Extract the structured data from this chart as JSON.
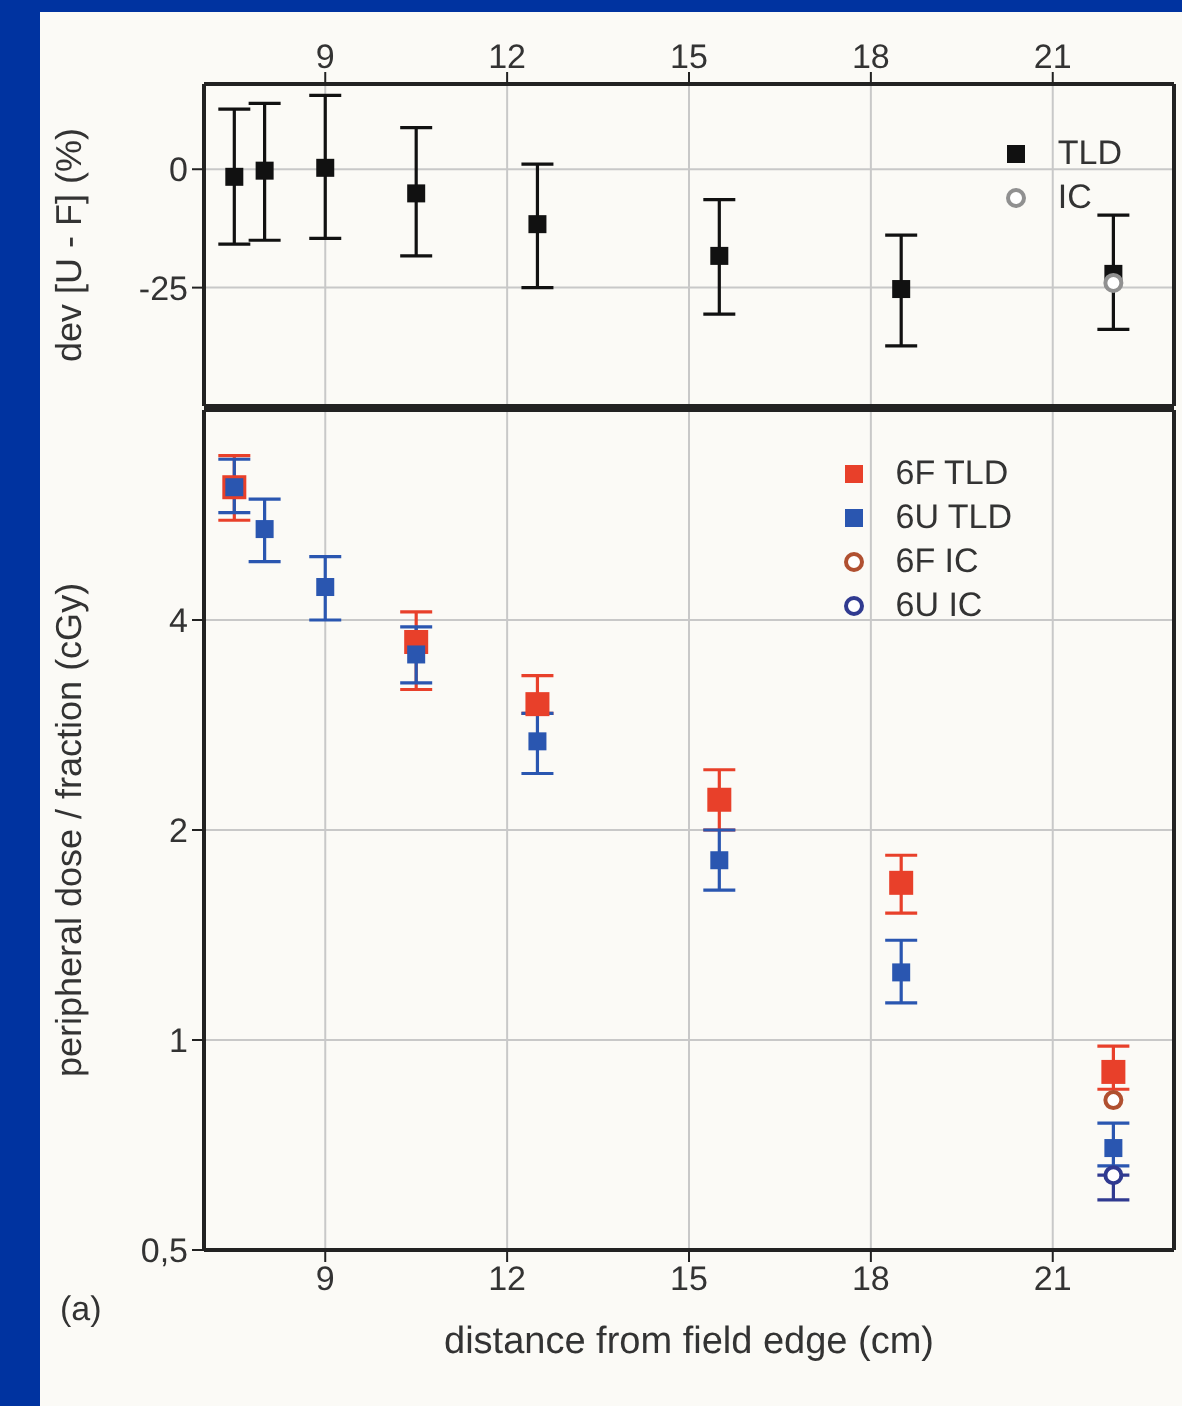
{
  "chart_data": [
    {
      "type": "scatter",
      "ylabel": "dev [U - F] (%)",
      "x": [
        7.5,
        8,
        9,
        10.5,
        12.5,
        15.5,
        18.5,
        22
      ],
      "xlim": [
        7,
        23
      ],
      "xticks": [
        9,
        12,
        15,
        18,
        21
      ],
      "ylim": [
        -50,
        18
      ],
      "yticks": [
        -25,
        0
      ],
      "grid": true,
      "legend": "top right",
      "series": [
        {
          "name": "TLD",
          "color": "#111111",
          "marker": "square",
          "values": [
            -1.6,
            -0.3,
            0.3,
            -5.1,
            -11.6,
            -18.3,
            -25.3,
            -22.1
          ],
          "errors": [
            [
              -15.8,
              12.7
            ],
            [
              -15,
              13.9
            ],
            [
              -14.6,
              15.6
            ],
            [
              -18.3,
              8.8
            ],
            [
              -25,
              1.1
            ],
            [
              -30.6,
              -6.4
            ],
            [
              -37.3,
              -13.9
            ],
            [
              -33.8,
              -9.7
            ]
          ]
        },
        {
          "name": "IC",
          "color": "#909090",
          "marker": "circle",
          "values": [
            null,
            null,
            null,
            null,
            null,
            null,
            null,
            -24
          ]
        }
      ]
    },
    {
      "type": "scatter",
      "xlabel": "distance from field edge (cm)",
      "ylabel": "peripheral dose / fraction (cGy)",
      "annotations": [
        "(a)"
      ],
      "x": [
        7.5,
        8,
        9,
        10.5,
        12.5,
        15.5,
        18.5,
        22
      ],
      "xlim": [
        7,
        23
      ],
      "xticks": [
        9,
        12,
        15,
        18,
        21
      ],
      "ylim": [
        0.5,
        8
      ],
      "yticks": [
        {
          "value": 0.5,
          "label": "0,5"
        },
        1,
        2,
        4
      ],
      "log": "y",
      "grid": true,
      "legend": "top right",
      "series": [
        {
          "name": "6F TLD",
          "color": "#e8402a",
          "marker": "square",
          "values": [
            6.2,
            null,
            null,
            3.72,
            3.03,
            2.21,
            1.68,
            0.9
          ],
          "errors": [
            [
              5.56,
              6.88
            ],
            null,
            null,
            [
              3.18,
              4.11
            ],
            [
              2.94,
              3.33
            ],
            [
              2.0,
              2.44
            ],
            [
              1.52,
              1.84
            ],
            [
              0.85,
              0.98
            ]
          ]
        },
        {
          "name": "6U TLD",
          "color": "#2a56b0",
          "marker": "square",
          "values": [
            6.2,
            5.4,
            4.46,
            3.57,
            2.68,
            1.81,
            1.25,
            0.7
          ],
          "errors": [
            [
              5.7,
              6.8
            ],
            [
              4.85,
              5.96
            ],
            [
              4.0,
              4.93
            ],
            [
              3.25,
              3.91
            ],
            [
              2.41,
              2.94
            ],
            [
              1.64,
              2.0
            ],
            [
              1.13,
              1.39
            ],
            [
              0.66,
              0.76
            ]
          ]
        },
        {
          "name": "6F IC",
          "color": "#b05030",
          "marker": "circle",
          "values": [
            null,
            null,
            null,
            null,
            null,
            null,
            null,
            0.82
          ]
        },
        {
          "name": "6U IC",
          "color": "#303a90",
          "marker": "circle",
          "values": [
            null,
            null,
            null,
            null,
            null,
            null,
            null,
            0.64
          ],
          "errors": [
            null,
            null,
            null,
            null,
            null,
            null,
            null,
            [
              0.59,
              0.64
            ]
          ]
        }
      ]
    }
  ]
}
